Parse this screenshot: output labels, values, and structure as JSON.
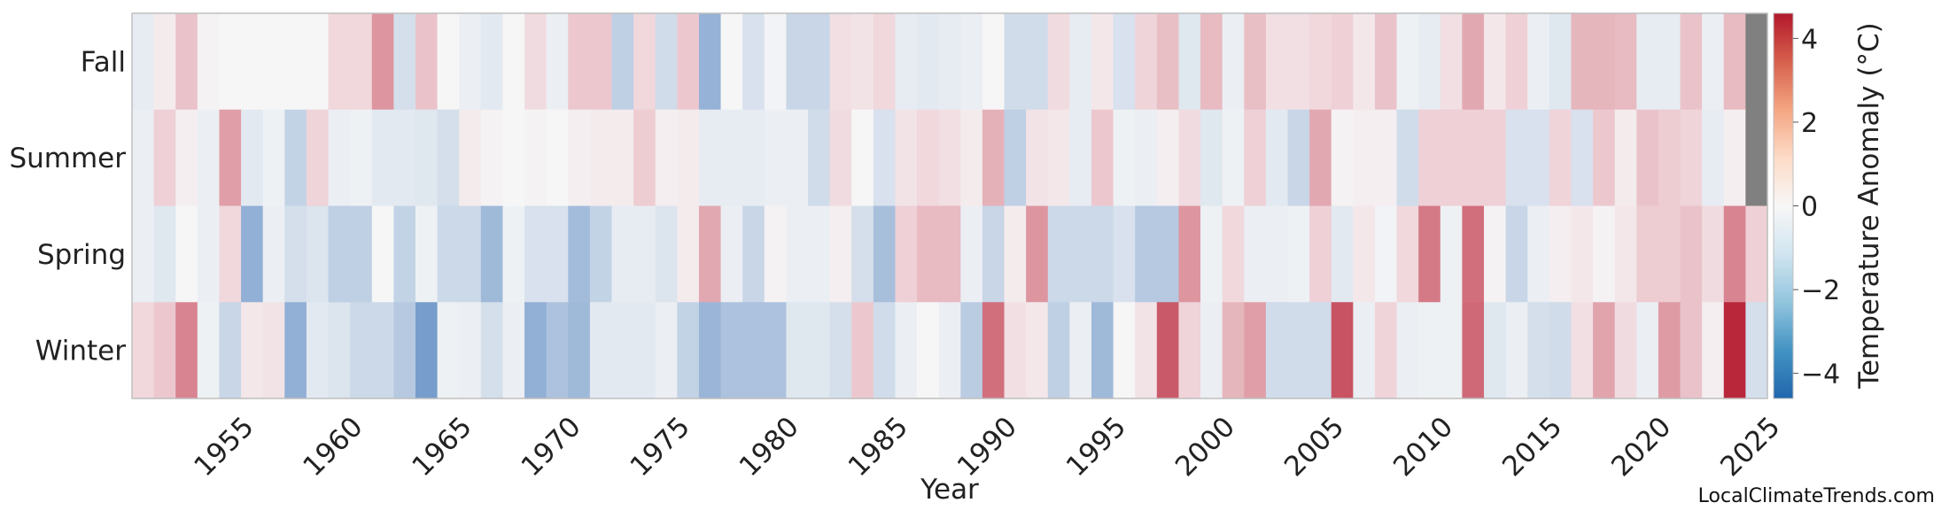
{
  "chart_data": {
    "type": "heatmap",
    "title": "",
    "xlabel": "Year",
    "colorbar_label": "Temperature Anomaly (°C)",
    "colorbar_ticks": [
      4,
      2,
      0,
      -2,
      -4
    ],
    "value_range": [
      -4.6,
      4.6
    ],
    "colormap": "RdBu_r",
    "missing_color": "#808080",
    "years_first": 1951,
    "years_last": 2025,
    "x_ticks": [
      1955,
      1960,
      1965,
      1970,
      1975,
      1980,
      1985,
      1990,
      1995,
      2000,
      2005,
      2010,
      2015,
      2020,
      2025
    ],
    "grid": false,
    "rows": [
      {
        "season": "Fall",
        "values": [
          -0.4,
          0.3,
          1.3,
          0.1,
          0,
          0,
          0,
          0,
          0,
          0.8,
          0.8,
          2.3,
          -0.9,
          1.3,
          0,
          -0.3,
          -0.5,
          0,
          0.7,
          -0.3,
          1.2,
          1.2,
          -1.4,
          0.8,
          -1.0,
          1.2,
          -2.3,
          0,
          -0.8,
          -0.1,
          -1.2,
          -1.2,
          0.6,
          0.5,
          0.8,
          -0.4,
          -0.5,
          -0.4,
          -0.3,
          0,
          -1.0,
          -1.0,
          0.7,
          -0.4,
          0.4,
          -0.8,
          0.9,
          1.4,
          -0.6,
          1.5,
          -0.3,
          1.4,
          0.6,
          0.6,
          0.8,
          1.0,
          0.4,
          1.3,
          -0.2,
          -0.4,
          0.6,
          1.9,
          0.4,
          1.0,
          -0.3,
          -0.6,
          1.6,
          1.6,
          1.5,
          -0.4,
          -0.4,
          1.3,
          -0.3,
          1.5,
          null
        ]
      },
      {
        "season": "Summer",
        "values": [
          -0.3,
          1.0,
          0.2,
          -0.3,
          2.1,
          -0.5,
          -0.2,
          -1.3,
          0.9,
          -0.3,
          -0.2,
          -0.5,
          -0.5,
          -0.6,
          -0.9,
          0.3,
          0.1,
          0,
          0.1,
          0,
          0.2,
          0.3,
          0.3,
          1.1,
          0.2,
          0.3,
          -0.4,
          -0.4,
          -0.4,
          -0.3,
          -0.3,
          -1.0,
          0.7,
          0,
          -0.8,
          0.5,
          0.8,
          0.6,
          0.3,
          1.7,
          -1.4,
          0.5,
          0.4,
          -0.4,
          1.2,
          -0.2,
          -0.3,
          0.2,
          0.7,
          -0.6,
          -0.2,
          1.0,
          -0.5,
          -1.2,
          1.9,
          0.1,
          0.2,
          0.2,
          -1.0,
          1.0,
          1.0,
          1.0,
          1.0,
          -0.8,
          -0.8,
          0.9,
          -0.8,
          1.2,
          0.3,
          1.3,
          1.1,
          0.9,
          -0.4,
          0.2,
          null
        ]
      },
      {
        "season": "Spring",
        "values": [
          -0.3,
          -0.6,
          0,
          -0.3,
          0.8,
          -2.4,
          -0.3,
          -0.9,
          -0.7,
          -1.4,
          -1.4,
          0,
          -1.3,
          -0.2,
          -1.1,
          -1.1,
          -2.1,
          -0.2,
          -0.8,
          -0.8,
          -2.0,
          -1.3,
          -0.4,
          -0.4,
          -0.7,
          0.3,
          1.9,
          -0.3,
          -1.2,
          0.1,
          -0.3,
          -0.3,
          0.2,
          -0.9,
          -1.9,
          1.0,
          1.5,
          1.5,
          -0.3,
          -1.2,
          0.3,
          2.3,
          -1.1,
          -1.1,
          -1.1,
          -0.8,
          -1.6,
          -1.6,
          2.3,
          -0.2,
          0.8,
          -0.3,
          -0.3,
          -0.2,
          1.0,
          -0.5,
          0.4,
          -0.1,
          0.8,
          2.8,
          -0.2,
          3.0,
          0.1,
          -1.2,
          -0.3,
          0.2,
          0.4,
          0.1,
          0.4,
          1.1,
          1.1,
          1.3,
          0.7,
          2.6,
          1.0
        ]
      },
      {
        "season": "Winter",
        "values": [
          0.8,
          1.2,
          2.6,
          -0.2,
          -1.2,
          0.4,
          0.5,
          -2.4,
          -0.5,
          -0.7,
          -1.1,
          -1.1,
          -1.6,
          -3.0,
          -0.2,
          -0.3,
          -0.9,
          -0.3,
          -2.4,
          -1.8,
          -2.1,
          -0.5,
          -0.5,
          -0.5,
          -0.3,
          -1.3,
          -2.2,
          -1.8,
          -1.8,
          -1.8,
          -0.6,
          -0.6,
          -0.9,
          1.2,
          -1.0,
          -0.3,
          0,
          -0.3,
          -1.5,
          3.0,
          0.6,
          0.4,
          -1.4,
          -0.3,
          -2.1,
          0,
          0.5,
          3.4,
          0.9,
          -0.3,
          1.6,
          2.1,
          -1.0,
          -1.0,
          -1.0,
          3.5,
          -0.3,
          0.9,
          -0.3,
          -0.2,
          -0.2,
          3.1,
          -0.6,
          -0.3,
          -0.9,
          -1.0,
          0.6,
          2.0,
          0.7,
          -0.3,
          2.2,
          1.3,
          0.2,
          4.3,
          -0.9
        ]
      }
    ]
  },
  "watermark": "LocalClimateTrends.com"
}
